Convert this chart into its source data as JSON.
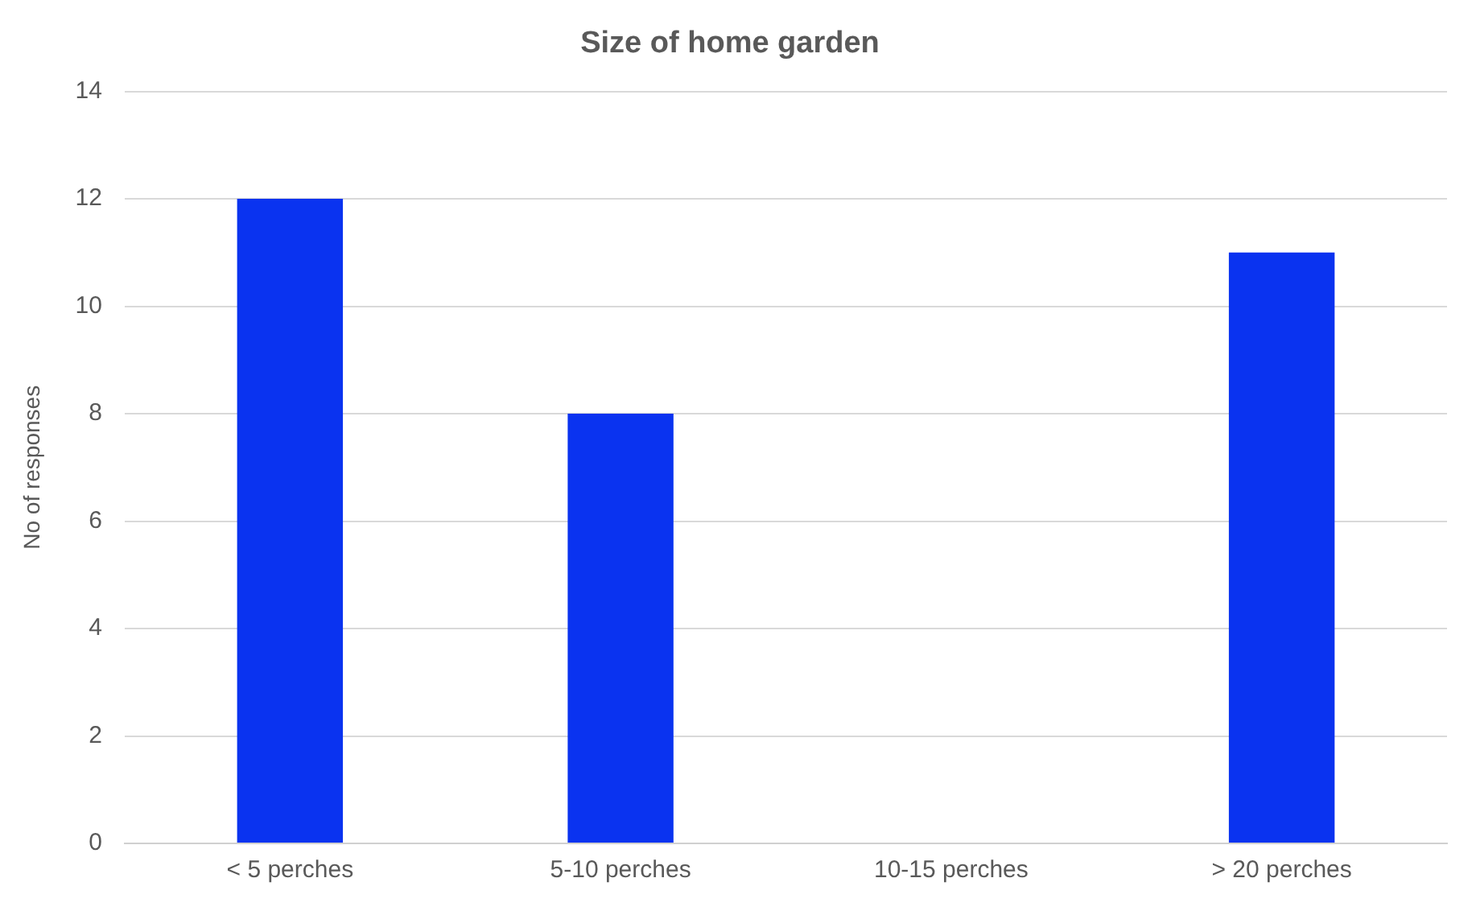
{
  "chart_data": {
    "type": "bar",
    "title": "Size of home garden",
    "ylabel": "No of responses",
    "categories": [
      "< 5 perches",
      "5-10 perches",
      "10-15 perches",
      "> 20 perches"
    ],
    "values": [
      12,
      8,
      0,
      11
    ],
    "color": "#0a33f0",
    "ylim": [
      0,
      14
    ],
    "yticks": [
      0,
      2,
      4,
      6,
      8,
      10,
      12,
      14
    ],
    "grid": "y"
  }
}
